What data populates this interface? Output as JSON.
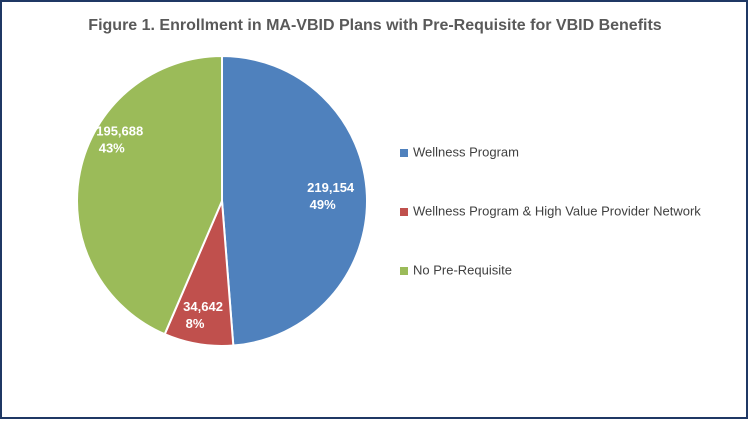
{
  "chart_data": {
    "type": "pie",
    "title": "Figure 1. Enrollment in MA-VBID Plans with Pre-Requisite for VBID Benefits",
    "categories": [
      "Wellness Program",
      "Wellness Program & High Value Provider Network",
      "No Pre-Requisite"
    ],
    "values": [
      219154,
      34642,
      195688
    ],
    "value_labels": [
      "219,154",
      "34,642",
      "195,688"
    ],
    "percentages": [
      49,
      8,
      43
    ],
    "percentage_labels": [
      "49%",
      "8%",
      "43%"
    ],
    "colors": [
      "#4f81bd",
      "#c0504d",
      "#9bbb59"
    ],
    "legend": "right"
  }
}
